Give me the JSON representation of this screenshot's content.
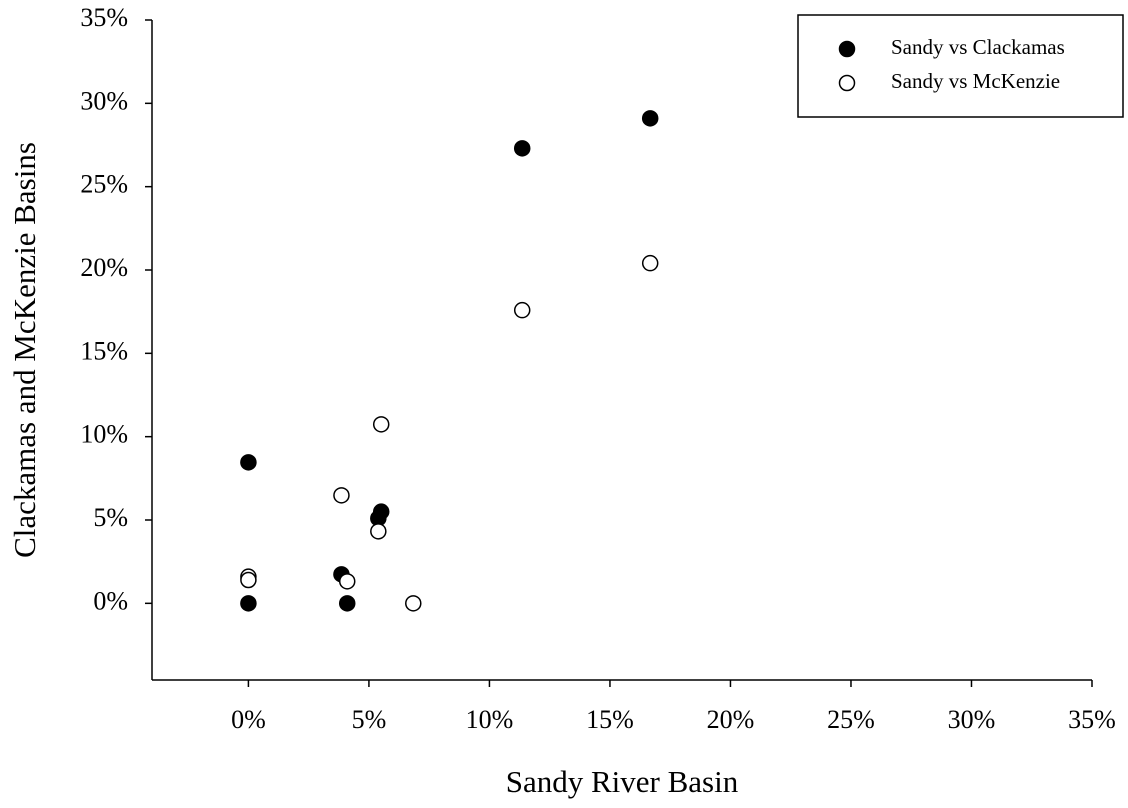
{
  "chart_data": {
    "type": "scatter",
    "x_label": "Sandy River Basin",
    "y_label": "Clackamas and McKenzie Basins",
    "xlim": [
      -4,
      35
    ],
    "ylim": [
      -4.6,
      35
    ],
    "xticks": [
      {
        "value": 0,
        "label": "0%"
      },
      {
        "value": 5,
        "label": "5%"
      },
      {
        "value": 10,
        "label": "10%"
      },
      {
        "value": 15,
        "label": "15%"
      },
      {
        "value": 20,
        "label": "20%"
      },
      {
        "value": 25,
        "label": "25%"
      },
      {
        "value": 30,
        "label": "30%"
      },
      {
        "value": 35,
        "label": "35%"
      }
    ],
    "yticks": [
      {
        "value": 0,
        "label": "0%"
      },
      {
        "value": 5,
        "label": "5%"
      },
      {
        "value": 10,
        "label": "10%"
      },
      {
        "value": 15,
        "label": "15%"
      },
      {
        "value": 20,
        "label": "20%"
      },
      {
        "value": 25,
        "label": "25%"
      },
      {
        "value": 30,
        "label": "30%"
      },
      {
        "value": 35,
        "label": "35%"
      }
    ],
    "legend": "upper right",
    "series": [
      {
        "name": "Sandy vs Clackamas",
        "color": "#000000",
        "x": [
          0,
          0,
          3.86,
          4.1,
          5.39,
          5.51,
          11.36,
          16.67
        ],
        "values": [
          8.46,
          0,
          1.74,
          0,
          5.1,
          5.5,
          27.3,
          29.1
        ]
      },
      {
        "name": "Sandy vs McKenzie",
        "color": "#ffffff",
        "x": [
          0,
          0,
          3.86,
          4.1,
          5.39,
          5.51,
          6.84,
          11.36,
          16.67
        ],
        "values": [
          1.6,
          1.4,
          6.48,
          1.32,
          4.32,
          10.74,
          0,
          17.59,
          20.41
        ]
      }
    ]
  }
}
